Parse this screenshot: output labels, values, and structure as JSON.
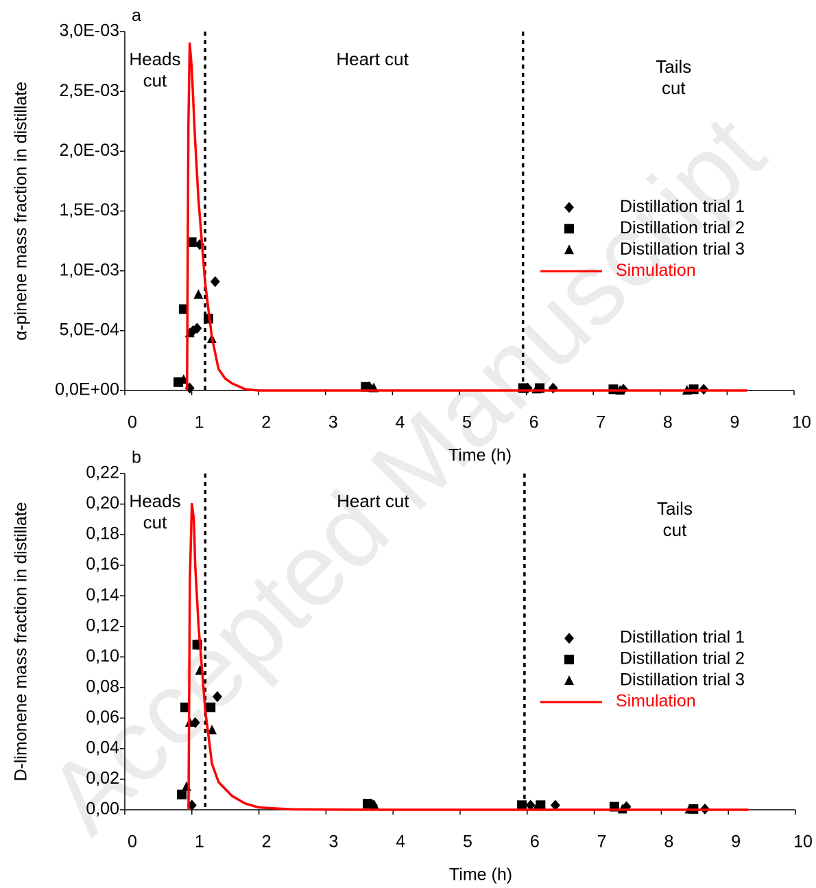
{
  "watermark": "Accepted Manuscript",
  "chart_data": [
    {
      "type": "scatter",
      "panel_label": "a",
      "xlabel": "Time (h)",
      "ylabel": "α-pinene mass fraction in distillate",
      "xlim": [
        0,
        10
      ],
      "xticks": [
        0,
        1,
        2,
        3,
        4,
        5,
        6,
        7,
        8,
        9,
        10
      ],
      "ylim": [
        0,
        0.003
      ],
      "yticks": [
        {
          "value": 0,
          "label": "0,0E+00"
        },
        {
          "value": 0.0005,
          "label": "5,0E-04"
        },
        {
          "value": 0.001,
          "label": "1,0E-03"
        },
        {
          "value": 0.0015,
          "label": "1,5E-03"
        },
        {
          "value": 0.002,
          "label": "2,0E-03"
        },
        {
          "value": 0.0025,
          "label": "2,5E-03"
        },
        {
          "value": 0.003,
          "label": "3,0E-03"
        }
      ],
      "cut_times": [
        1.2,
        5.95
      ],
      "annotations": [
        "Heads cut",
        "Heart cut",
        "Tails cut"
      ],
      "series": [
        {
          "name": "Distillation trial 1",
          "marker": "diamond",
          "color": "#000000",
          "x": [
            0.97,
            1.02,
            1.08,
            1.12,
            1.35,
            3.65,
            6.02,
            6.4,
            7.45,
            8.65
          ],
          "values": [
            2e-05,
            0.0005,
            0.00052,
            0.00122,
            0.00091,
            3e-05,
            2e-05,
            2e-05,
            1e-05,
            1e-05
          ]
        },
        {
          "name": "Distillation trial 2",
          "marker": "square",
          "color": "#000000",
          "x": [
            0.8,
            0.88,
            1.0,
            1.25,
            3.6,
            5.95,
            6.2,
            7.3,
            8.5
          ],
          "values": [
            7e-05,
            0.00068,
            0.00124,
            0.0006,
            3e-05,
            2e-05,
            2e-05,
            1e-05,
            1e-05
          ]
        },
        {
          "name": "Distillation trial 3",
          "marker": "triangle",
          "color": "#000000",
          "x": [
            0.88,
            0.97,
            1.1,
            1.3,
            3.72,
            6.15,
            7.4,
            8.4
          ],
          "values": [
            9e-05,
            0.00048,
            0.0008,
            0.00043,
            2e-05,
            1e-05,
            0,
            0
          ]
        },
        {
          "name": "Simulation",
          "marker": "line",
          "color": "#ff0000",
          "x": [
            0.93,
            0.95,
            0.97,
            1.0,
            1.05,
            1.1,
            1.2,
            1.3,
            1.4,
            1.5,
            1.6,
            1.8,
            2.0,
            2.5,
            3,
            4,
            5,
            6,
            7,
            8,
            9,
            9.3
          ],
          "values": [
            0,
            0.0022,
            0.0029,
            0.0027,
            0.0021,
            0.0016,
            0.0009,
            0.00045,
            0.00018,
            0.0001,
            6e-05,
            1e-05,
            0,
            0,
            0,
            0,
            0,
            0,
            0,
            0,
            0,
            0
          ]
        }
      ]
    },
    {
      "type": "scatter",
      "panel_label": "b",
      "xlabel": "Time (h)",
      "ylabel": "D-limonene mass fraction in distillate",
      "xlim": [
        0,
        10
      ],
      "xticks": [
        0,
        1,
        2,
        3,
        4,
        5,
        6,
        7,
        8,
        9,
        10
      ],
      "ylim": [
        0,
        0.22
      ],
      "yticks": [
        {
          "value": 0,
          "label": "0,00"
        },
        {
          "value": 0.02,
          "label": "0,02"
        },
        {
          "value": 0.04,
          "label": "0,04"
        },
        {
          "value": 0.06,
          "label": "0,06"
        },
        {
          "value": 0.08,
          "label": "0,08"
        },
        {
          "value": 0.1,
          "label": "0,10"
        },
        {
          "value": 0.12,
          "label": "0,12"
        },
        {
          "value": 0.14,
          "label": "0,14"
        },
        {
          "value": 0.16,
          "label": "0,16"
        },
        {
          "value": 0.18,
          "label": "0,18"
        },
        {
          "value": 0.2,
          "label": "0,20"
        },
        {
          "value": 0.22,
          "label": "0,22"
        }
      ],
      "cut_times": [
        1.2,
        5.96
      ],
      "annotations": [
        "Heads cut",
        "Heart cut",
        "Tails cut"
      ],
      "series": [
        {
          "name": "Distillation trial 1",
          "marker": "diamond",
          "color": "#000000",
          "x": [
            1.0,
            1.05,
            1.08,
            1.38,
            3.7,
            6.05,
            6.42,
            7.48,
            8.65
          ],
          "values": [
            0.003,
            0.057,
            0.108,
            0.074,
            0.003,
            0.003,
            0.003,
            0.002,
            0.0005
          ]
        },
        {
          "name": "Distillation trial 2",
          "marker": "square",
          "color": "#000000",
          "x": [
            0.85,
            0.9,
            1.08,
            1.28,
            3.62,
            5.92,
            6.2,
            7.3,
            8.48
          ],
          "values": [
            0.01,
            0.067,
            0.108,
            0.067,
            0.004,
            0.003,
            0.003,
            0.002,
            0.0005
          ]
        },
        {
          "name": "Distillation trial 3",
          "marker": "triangle",
          "color": "#000000",
          "x": [
            0.92,
            0.97,
            1.12,
            1.3,
            3.72,
            6.15,
            7.42,
            8.42
          ],
          "values": [
            0.015,
            0.057,
            0.091,
            0.052,
            0.003,
            0.002,
            0.0003,
            0.0002
          ]
        },
        {
          "name": "Simulation",
          "marker": "line",
          "color": "#ff0000",
          "x": [
            0.95,
            0.97,
            1.0,
            1.03,
            1.05,
            1.1,
            1.2,
            1.3,
            1.4,
            1.6,
            1.8,
            2.0,
            2.5,
            3,
            4,
            5,
            6,
            7,
            8,
            9,
            9.3
          ],
          "values": [
            0,
            0.15,
            0.2,
            0.19,
            0.16,
            0.12,
            0.065,
            0.03,
            0.018,
            0.009,
            0.004,
            0.0015,
            0.0003,
            0.0001,
            0,
            0,
            0,
            0,
            0,
            0,
            0
          ]
        }
      ]
    }
  ]
}
